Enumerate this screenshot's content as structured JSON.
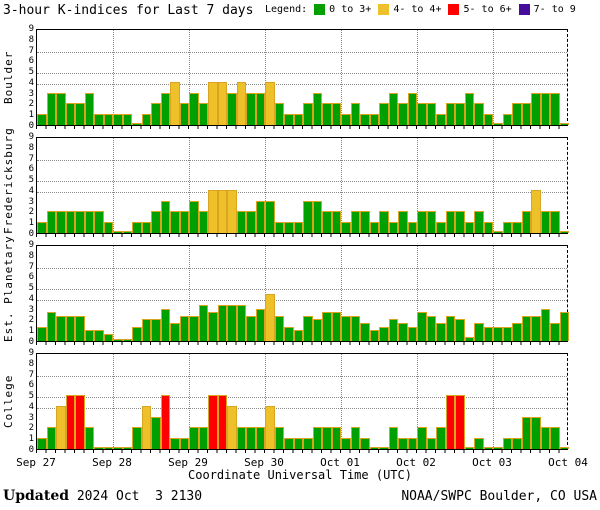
{
  "title": "3-hour K-indices for Last 7 days",
  "legend": {
    "label": "Legend:",
    "items": [
      {
        "label": "0 to 3+",
        "color": "#00a000"
      },
      {
        "label": "4- to 4+",
        "color": "#eec02a"
      },
      {
        "label": "5- to 6+",
        "color": "#ff0000"
      },
      {
        "label": "7- to 9",
        "color": "#470c9c"
      }
    ]
  },
  "colors": {
    "green": "#00a000",
    "yellow": "#eec02a",
    "red": "#ff0000",
    "purple": "#470c9c",
    "bar_outline": "#d9a520",
    "grid": "#8a8a8a"
  },
  "y_axis": {
    "tick_labels": [
      "0",
      "1",
      "2",
      "3",
      "4",
      "5",
      "6",
      "7",
      "8",
      "9"
    ],
    "gridline_values": [
      4,
      5,
      7
    ],
    "range": [
      0,
      9
    ]
  },
  "x_axis": {
    "tick_labels": [
      "Sep 27",
      "Sep 28",
      "Sep 29",
      "Sep 30",
      "Oct 01",
      "Oct 02",
      "Oct 03",
      "Oct 04"
    ],
    "title": "Coordinate Universal Time (UTC)"
  },
  "footer": {
    "updated_label": "Updated",
    "updated_value": "2024 Oct  3 2130",
    "source": "NOAA/SWPC Boulder, CO USA"
  },
  "chart_data": {
    "type": "bar",
    "note": "3-hour K-index values, 8 bars per day, Sep 27 through Oct 03 (UTC)",
    "ylim": [
      0,
      9
    ],
    "color_rule": "K<3.5 green; 3.5<=K<4.5 yellow; 4.5<=K<6.5 red; K>=6.5 purple",
    "categories_days": [
      "Sep 27",
      "Sep 28",
      "Sep 29",
      "Sep 30",
      "Oct 01",
      "Oct 02",
      "Oct 03"
    ],
    "panels": [
      {
        "station": "Boulder",
        "values": [
          1,
          3,
          3,
          2,
          2,
          3,
          1,
          1,
          1,
          1,
          0,
          1,
          2,
          3,
          4,
          2,
          3,
          2,
          4,
          4,
          3,
          4,
          3,
          3,
          4,
          2,
          1,
          1,
          2,
          3,
          2,
          2,
          1,
          2,
          1,
          1,
          2,
          3,
          2,
          3,
          2,
          2,
          1,
          2,
          2,
          3,
          2,
          1,
          0,
          1,
          2,
          2,
          3,
          3,
          3,
          0
        ]
      },
      {
        "station": "Fredericksburg",
        "values": [
          1,
          2,
          2,
          2,
          2,
          2,
          2,
          1,
          0,
          0,
          1,
          1,
          2,
          3,
          2,
          2,
          3,
          2,
          4,
          4,
          4,
          2,
          2,
          3,
          3,
          1,
          1,
          1,
          3,
          3,
          2,
          2,
          1,
          2,
          2,
          1,
          2,
          1,
          2,
          1,
          2,
          2,
          1,
          2,
          2,
          1,
          2,
          1,
          0,
          1,
          1,
          2,
          4,
          2,
          2,
          0
        ]
      },
      {
        "station": "Est. Planetary",
        "values": [
          1.33,
          2.67,
          2.33,
          2.33,
          2.33,
          1,
          1,
          0.67,
          0,
          0,
          1.33,
          2,
          2,
          3,
          1.67,
          2.33,
          2.33,
          3.33,
          2.67,
          3.33,
          3.33,
          3.33,
          2.33,
          3,
          4.33,
          2.33,
          1.33,
          1,
          2.33,
          2,
          2.67,
          2.67,
          2.33,
          2.33,
          1.67,
          1,
          1.33,
          2,
          1.67,
          1.33,
          2.67,
          2.33,
          1.67,
          2.33,
          2,
          0.33,
          1.67,
          1.33,
          1.33,
          1.33,
          1.67,
          2.33,
          2.33,
          3,
          1.67,
          2.67
        ]
      },
      {
        "station": "College",
        "values": [
          1,
          2,
          4,
          5,
          5,
          2,
          0,
          0,
          0,
          0,
          2,
          4,
          3,
          5,
          1,
          1,
          2,
          2,
          5,
          5,
          4,
          2,
          2,
          2,
          4,
          2,
          1,
          1,
          1,
          2,
          2,
          2,
          1,
          2,
          1,
          0,
          0,
          2,
          1,
          1,
          2,
          1,
          2,
          5,
          5,
          0,
          1,
          0,
          0,
          1,
          1,
          3,
          3,
          2,
          2,
          0
        ]
      }
    ]
  }
}
